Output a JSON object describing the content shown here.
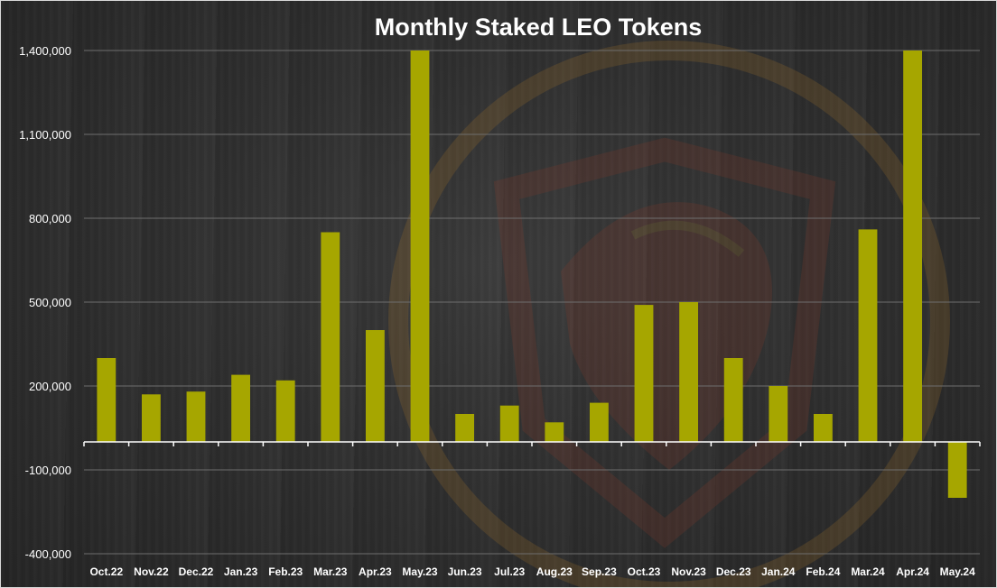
{
  "chart_data": {
    "type": "bar",
    "title": "Monthly Staked LEO Tokens",
    "xlabel": "",
    "ylabel": "",
    "categories": [
      "Oct.22",
      "Nov.22",
      "Dec.22",
      "Jan.23",
      "Feb.23",
      "Mar.23",
      "Apr.23",
      "May.23",
      "Jun.23",
      "Jul.23",
      "Aug.23",
      "Sep.23",
      "Oct.23",
      "Nov.23",
      "Dec.23",
      "Jan.24",
      "Feb.24",
      "Mar.24",
      "Apr.24",
      "May.24"
    ],
    "values": [
      300000,
      170000,
      180000,
      240000,
      220000,
      750000,
      400000,
      1400000,
      100000,
      130000,
      70000,
      140000,
      490000,
      500000,
      300000,
      200000,
      100000,
      760000,
      1400000,
      -200000
    ],
    "yticks": [
      -400000,
      -100000,
      200000,
      500000,
      800000,
      1100000,
      1400000
    ],
    "ytick_labels": [
      "-400,000",
      "-100,000",
      "200,000",
      "500,000",
      "800,000",
      "1,100,000",
      "1,400,000"
    ],
    "ylim": [
      -400000,
      1400000
    ],
    "grid": true,
    "legend": "none",
    "bar_color": "#a6a600",
    "watermark": "lion-logo"
  },
  "colors": {
    "background": "#2f2f2f",
    "bar": "#a6a600",
    "gridline": "#6e6e6e",
    "axis": "#ffffff",
    "text": "#ffffff",
    "watermark": "#8a3a2a"
  }
}
